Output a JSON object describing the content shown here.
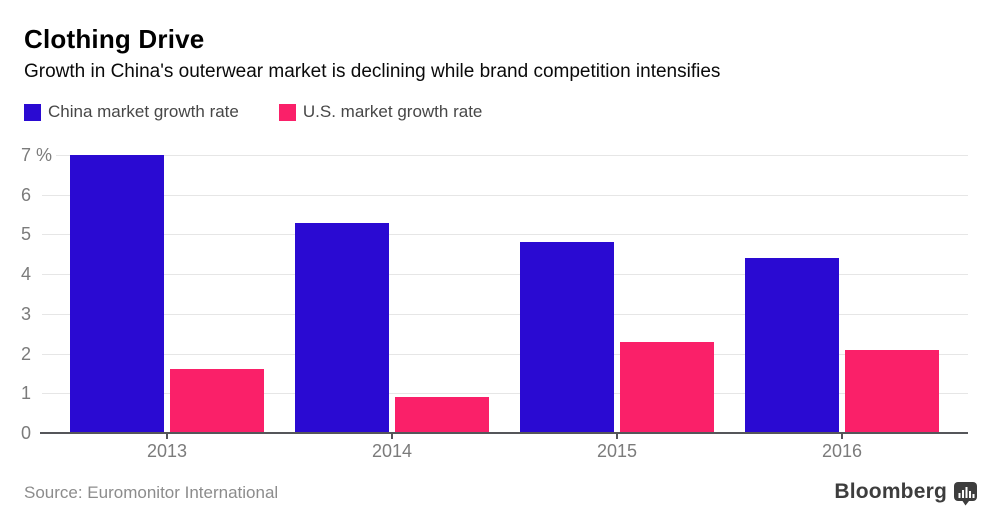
{
  "header": {
    "title": "Clothing Drive",
    "subtitle": "Growth in China's outerwear market is declining while brand competition intensifies"
  },
  "legend": {
    "items": [
      {
        "label": "China market growth rate",
        "color": "#2A0AD2"
      },
      {
        "label": "U.S. market growth rate",
        "color": "#FA2069"
      }
    ]
  },
  "chart_data": {
    "type": "bar",
    "categories": [
      "2013",
      "2014",
      "2015",
      "2016"
    ],
    "series": [
      {
        "name": "China market growth rate",
        "key": "china",
        "color": "#2A0AD2",
        "values": [
          7.0,
          5.3,
          4.8,
          4.4
        ]
      },
      {
        "name": "U.S. market growth rate",
        "key": "us",
        "color": "#FA2069",
        "values": [
          1.6,
          0.9,
          2.3,
          2.1
        ]
      }
    ],
    "title": "Clothing Drive",
    "xlabel": "",
    "ylabel": "%",
    "ylim": [
      0,
      7
    ],
    "y_ticks": [
      0,
      1,
      2,
      3,
      4,
      5,
      6,
      7
    ],
    "y_tick_labels": [
      "0",
      "1",
      "2",
      "3",
      "4",
      "5",
      "6",
      "7 %"
    ],
    "grid": true,
    "legend_position": "top-left"
  },
  "footer": {
    "source": "Source: Euromonitor International",
    "brand": "Bloomberg"
  },
  "colors": {
    "grid": "#e6e6e6",
    "axis": "#55565a",
    "axis_text": "#7b7b7b",
    "background": "#ffffff"
  }
}
